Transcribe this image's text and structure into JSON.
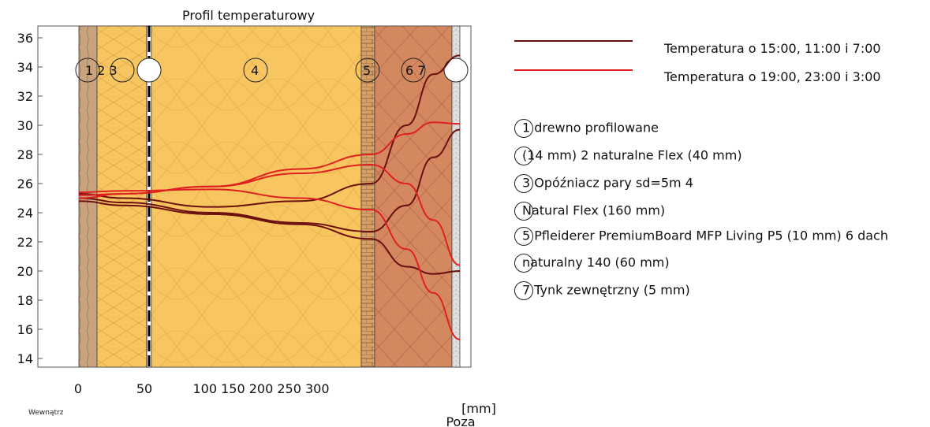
{
  "chart_data": {
    "type": "line",
    "title": "Profil temperaturowy",
    "xlabel": "[mm]",
    "x_ticks": [
      "0",
      "50",
      "100 150 200 250 300"
    ],
    "y_ticks": [
      14,
      16,
      18,
      20,
      22,
      24,
      26,
      28,
      30,
      32,
      34,
      36
    ],
    "ylim": [
      13.5,
      37
    ],
    "left_label": "Wewnątrz",
    "right_label": "Poza",
    "layer_numbers": [
      "1 2 3",
      "4",
      "5",
      "6 7"
    ],
    "series_groups": [
      {
        "name": "Temperatura o 15:00, 11:00 i 7:00",
        "color": "#6b0f0f"
      },
      {
        "name": "Temperatura o 19:00, 23:00 i 3:00",
        "color": "#e02020"
      }
    ],
    "series": [
      {
        "group": 0,
        "x": [
          0,
          50,
          150,
          250,
          330,
          370,
          400,
          430
        ],
        "values": [
          25.3,
          25.0,
          24.4,
          24.8,
          26.0,
          30.0,
          33.5,
          34.8
        ]
      },
      {
        "group": 0,
        "x": [
          0,
          50,
          150,
          250,
          330,
          370,
          400,
          430
        ],
        "values": [
          25.0,
          24.7,
          24.0,
          23.3,
          22.7,
          24.5,
          27.8,
          29.7
        ]
      },
      {
        "group": 0,
        "x": [
          0,
          50,
          150,
          250,
          330,
          370,
          400,
          430
        ],
        "values": [
          24.8,
          24.5,
          23.9,
          23.2,
          22.2,
          20.3,
          19.8,
          20.0
        ]
      },
      {
        "group": 1,
        "x": [
          0,
          50,
          150,
          250,
          330,
          370,
          400,
          430
        ],
        "values": [
          25.2,
          25.3,
          25.8,
          27.0,
          28.0,
          29.4,
          30.2,
          30.1
        ]
      },
      {
        "group": 1,
        "x": [
          0,
          50,
          150,
          250,
          330,
          370,
          400,
          430
        ],
        "values": [
          25.0,
          25.3,
          25.8,
          26.7,
          27.3,
          26.0,
          23.5,
          20.4
        ]
      },
      {
        "group": 1,
        "x": [
          0,
          50,
          150,
          250,
          330,
          370,
          400,
          430
        ],
        "values": [
          25.4,
          25.5,
          25.6,
          25.0,
          24.2,
          21.5,
          18.5,
          15.3
        ]
      }
    ]
  },
  "legend": [
    {
      "label": "Temperatura o 15:00, 11:00 i 7:00",
      "color": "#6b0f0f"
    },
    {
      "label": "Temperatura o 19:00, 23:00 i 3:00",
      "color": "#e02020"
    }
  ],
  "materials": [
    "1 drewno profilowane",
    "(14 mm) 2 naturalne Flex (40 mm)",
    "3 Opóźniacz pary sd=5m 4",
    "Natural Flex (160 mm)",
    "5 Pfleiderer PremiumBoard MFP Living P5 (10 mm) 6 dach",
    "naturalny 140 (60 mm)",
    "7 Tynk zewnętrzny (5 mm)"
  ],
  "colors": {
    "wood": "#c9a27e",
    "insulation": "#f7c660",
    "board": "#d9a066",
    "roof_insulation": "#d48860",
    "plaster": "#e0e0e0"
  }
}
